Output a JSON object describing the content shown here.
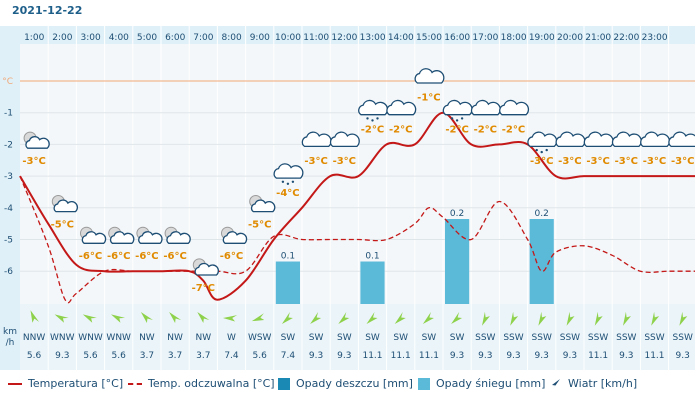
{
  "date": "2021-12-22",
  "colors": {
    "temperature": "#c41818",
    "feels_like": "#c41818",
    "rain": "#1a8ab5",
    "snow": "#5cbad9",
    "temp_label": "#e08a00",
    "wind_arrow": "#8ed14a",
    "zero_line": "#f0a878"
  },
  "chart_data": {
    "type": "line",
    "hours": [
      "1:00",
      "2:00",
      "3:00",
      "4:00",
      "5:00",
      "6:00",
      "7:00",
      "8:00",
      "9:00",
      "10:00",
      "11:00",
      "12:00",
      "13:00",
      "14:00",
      "15:00",
      "16:00",
      "17:00",
      "18:00",
      "19:00",
      "20:00",
      "21:00",
      "22:00",
      "23:00"
    ],
    "y_unit_label": "°C",
    "y_ticks": [
      -1,
      -2,
      -3,
      -4,
      -5,
      -6
    ],
    "ylim": [
      -7,
      0
    ],
    "series": [
      {
        "name": "Temperatura [°C]",
        "x": [
          0,
          1,
          2,
          3,
          4,
          5,
          6,
          6.5,
          7,
          8,
          9,
          10,
          11,
          12,
          13,
          14,
          15,
          16,
          17,
          18,
          19,
          20,
          21,
          22,
          23,
          24
        ],
        "values": [
          -3.0,
          -4.5,
          -5.8,
          -6.0,
          -6.0,
          -6.0,
          -6.0,
          -6.3,
          -6.9,
          -6.3,
          -5.0,
          -4.0,
          -3.0,
          -3.0,
          -2.0,
          -2.0,
          -1.0,
          -2.0,
          -2.0,
          -2.0,
          -3.0,
          -3.0,
          -3.0,
          -3.0,
          -3.0,
          -3.0
        ]
      },
      {
        "name": "Temp. odczuwalna [°C]",
        "x": [
          0,
          1,
          1.6,
          2,
          3,
          4,
          5,
          6,
          7,
          8,
          9,
          10,
          11,
          12,
          13,
          14,
          14.5,
          15,
          16,
          17,
          18,
          18.5,
          19,
          20,
          21,
          22,
          23,
          24
        ],
        "values": [
          -3.0,
          -5.2,
          -6.9,
          -6.7,
          -6.0,
          -6.0,
          -6.0,
          -6.0,
          -6.0,
          -6.0,
          -4.9,
          -5.0,
          -5.0,
          -5.0,
          -5.0,
          -4.5,
          -4.0,
          -4.3,
          -5.0,
          -3.8,
          -5.0,
          -6.0,
          -5.4,
          -5.2,
          -5.5,
          -6.0,
          -6.0,
          -6.0
        ]
      }
    ],
    "hourly": {
      "temp_labels": [
        "-3°C",
        "-5°C",
        "-6°C",
        "-6°C",
        "-6°C",
        "-6°C",
        "-7°C",
        "-6°C",
        "-5°C",
        "-4°C",
        "-3°C",
        "-3°C",
        "-2°C",
        "-2°C",
        "-1°C",
        "-2°C",
        "-2°C",
        "-2°C",
        "-3°C",
        "-3°C",
        "-3°C",
        "-3°C",
        "-3°C",
        "-3°C"
      ],
      "temp_values": [
        -3,
        -5,
        -6,
        -6,
        -6,
        -6,
        -7,
        -6,
        -5,
        -4,
        -3,
        -3,
        -2,
        -2,
        -1,
        -2,
        -2,
        -2,
        -3,
        -3,
        -3,
        -3,
        -3,
        -3
      ],
      "icons": [
        "partly-cloudy-night-icon",
        "partly-cloudy-night-icon",
        "partly-cloudy-night-icon",
        "partly-cloudy-night-icon",
        "partly-cloudy-night-icon",
        "partly-cloudy-night-icon",
        "partly-cloudy-night-icon",
        "partly-cloudy-day-icon",
        "partly-cloudy-day-icon",
        "cloud-snow-icon",
        "cloud-icon",
        "cloud-icon",
        "cloud-snow-icon",
        "cloud-icon",
        "cloud-icon",
        "cloud-snow-icon",
        "cloud-icon",
        "cloud-icon",
        "cloud-snow-icon",
        "cloud-icon",
        "cloud-icon",
        "cloud-icon",
        "cloud-icon",
        "cloud-icon"
      ],
      "wind_dirs": [
        "NNW",
        "WNW",
        "WNW",
        "WNW",
        "NW",
        "NW",
        "NW",
        "W",
        "WSW",
        "SW",
        "SW",
        "SW",
        "SW",
        "SW",
        "SW",
        "SW",
        "SSW",
        "SSW",
        "SSW",
        "SSW",
        "SSW",
        "SSW",
        "SSW",
        "SSW"
      ],
      "wind_speeds": [
        "5.6",
        "9.3",
        "5.6",
        "5.6",
        "3.7",
        "3.7",
        "3.7",
        "7.4",
        "5.6",
        "7.4",
        "9.3",
        "9.3",
        "11.1",
        "11.1",
        "11.1",
        "9.3",
        "9.3",
        "9.3",
        "9.3",
        "9.3",
        "11.1",
        "9.3",
        "11.1",
        "9.3"
      ],
      "wind_bearing": [
        335,
        295,
        295,
        295,
        315,
        315,
        315,
        270,
        248,
        225,
        225,
        225,
        225,
        225,
        225,
        225,
        203,
        203,
        203,
        203,
        203,
        203,
        203,
        203
      ]
    },
    "precipitation": [
      {
        "hour_index": 9,
        "value": 0.2,
        "label": "0.1",
        "type": "snow"
      },
      {
        "hour_index": 12,
        "value": 0.2,
        "label": "0.1",
        "type": "snow"
      },
      {
        "hour_index": 15,
        "value": 0.4,
        "label": "0.2",
        "type": "snow"
      },
      {
        "hour_index": 18,
        "value": 0.4,
        "label": "0.2",
        "type": "snow"
      }
    ],
    "wind_unit": [
      "km",
      "/h"
    ]
  },
  "legend": {
    "temperature": "Temperatura [°C]",
    "feels_like": "Temp. odczuwalna [°C]",
    "rain": "Opady deszczu [mm]",
    "snow": "Opady śniegu [mm]",
    "wind": "Wiatr [km/h]"
  }
}
